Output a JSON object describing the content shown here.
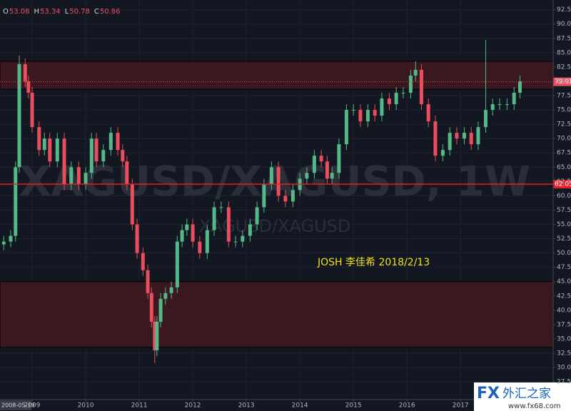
{
  "chart_data": {
    "type": "candlestick",
    "symbol_watermark": "XAGUSD/XAGUSD, 1W",
    "symbol_watermark_sub": "XAGUSD/XAGUSD",
    "annotation": "JOSH 李佳希 2018/2/13",
    "ohlc_legend": [
      {
        "label": "O",
        "value": 53.08
      },
      {
        "label": "H",
        "value": 53.34
      },
      {
        "label": "L",
        "value": 50.78
      },
      {
        "label": "C",
        "value": 50.86
      }
    ],
    "x_crosshair_label": "2008-05-19",
    "x": [
      2008.47,
      2008.6,
      2008.69,
      2008.76,
      2008.87,
      2008.93,
      2009.0,
      2009.13,
      2009.23,
      2009.33,
      2009.47,
      2009.6,
      2009.73,
      2009.87,
      2010.0,
      2010.11,
      2010.2,
      2010.33,
      2010.47,
      2010.6,
      2010.69,
      2010.77,
      2010.87,
      2010.96,
      2011.07,
      2011.16,
      2011.23,
      2011.29,
      2011.33,
      2011.4,
      2011.49,
      2011.6,
      2011.71,
      2011.8,
      2011.89,
      2012.0,
      2012.13,
      2012.27,
      2012.4,
      2012.53,
      2012.67,
      2012.8,
      2012.93,
      2013.07,
      2013.2,
      2013.33,
      2013.47,
      2013.6,
      2013.73,
      2013.87,
      2014.0,
      2014.13,
      2014.27,
      2014.4,
      2014.51,
      2014.6,
      2014.73,
      2014.87,
      2015.0,
      2015.13,
      2015.27,
      2015.4,
      2015.53,
      2015.67,
      2015.8,
      2015.93,
      2016.07,
      2016.16,
      2016.27,
      2016.4,
      2016.53,
      2016.67,
      2016.8,
      2016.93,
      2017.07,
      2017.2,
      2017.33,
      2017.47,
      2017.6,
      2017.73,
      2017.87,
      2018.0,
      2018.11
    ],
    "open": [
      51.5,
      52,
      53,
      65,
      83,
      80,
      78,
      72,
      68,
      70,
      66,
      70,
      62,
      65,
      62,
      64,
      70,
      66,
      68,
      71,
      68,
      66,
      62,
      55,
      50,
      47,
      43,
      38,
      33,
      38,
      42,
      43,
      44,
      52,
      54,
      55,
      52,
      50,
      54,
      58,
      58,
      52,
      52,
      53,
      55,
      58,
      62,
      65,
      60,
      59,
      61,
      63,
      64,
      67,
      66,
      63,
      64,
      69,
      75,
      75,
      73,
      75,
      74,
      77,
      76,
      78,
      78,
      81,
      82,
      76,
      73,
      67,
      68,
      71,
      70,
      71,
      69,
      72,
      75,
      76,
      76,
      76,
      78
    ],
    "high": [
      53,
      54,
      66,
      84.5,
      84,
      81,
      79,
      73,
      71,
      71,
      71,
      71,
      66,
      66,
      65,
      71,
      71,
      69,
      72,
      72,
      69,
      67,
      63,
      56,
      51,
      48,
      44,
      39,
      39,
      43,
      44,
      45,
      53,
      55,
      56,
      56,
      53,
      55,
      59,
      59,
      59,
      53,
      54,
      56,
      59,
      63,
      66,
      66,
      61,
      62,
      64,
      65,
      68,
      68,
      67,
      65,
      70,
      76,
      76,
      76,
      76,
      76,
      78,
      78,
      79,
      79,
      82,
      83.5,
      83,
      77,
      74,
      69,
      72,
      72,
      72,
      72,
      73,
      87.2,
      77,
      77,
      77,
      79,
      81
    ],
    "low": [
      50.5,
      51,
      52,
      64,
      79,
      77,
      71,
      67,
      67,
      65,
      65,
      61,
      61,
      61,
      61,
      63,
      65,
      65,
      67,
      67,
      65,
      61,
      54,
      49,
      46,
      42,
      37,
      30.8,
      32,
      37,
      41,
      42,
      43,
      51,
      53,
      51,
      49,
      49,
      53,
      57,
      51,
      51,
      51,
      52,
      54,
      57,
      61,
      59,
      58,
      58,
      60,
      62,
      63,
      65,
      62,
      62,
      63,
      68,
      74,
      72,
      72,
      73,
      73,
      75,
      75,
      77,
      77,
      80,
      75,
      72,
      66,
      66,
      67,
      69,
      69,
      68,
      68,
      71,
      74,
      75,
      75,
      75,
      77
    ],
    "close": [
      52,
      53,
      65,
      83,
      80,
      78,
      72,
      68,
      70,
      66,
      70,
      62,
      65,
      62,
      64,
      70,
      66,
      68,
      71,
      68,
      66,
      62,
      55,
      50,
      47,
      43,
      38,
      33,
      38,
      42,
      43,
      44,
      52,
      54,
      55,
      52,
      50,
      54,
      58,
      58,
      52,
      52,
      53,
      55,
      58,
      62,
      65,
      60,
      59,
      61,
      63,
      64,
      67,
      66,
      63,
      64,
      69,
      75,
      75,
      73,
      75,
      74,
      77,
      76,
      78,
      78,
      81,
      82,
      76,
      73,
      67,
      68,
      71,
      70,
      71,
      69,
      72,
      75,
      76,
      76,
      76,
      78,
      80
    ],
    "up_color": "#53b987",
    "down_color": "#eb4d5c",
    "xlim": [
      2008.4,
      2018.73
    ],
    "xticks": [
      2009,
      2010,
      2011,
      2012,
      2013,
      2014,
      2015,
      2016,
      2017
    ],
    "ylim": [
      24.4,
      94.2
    ],
    "yticks": [
      {
        "value": 27.5,
        "label": "27.50"
      },
      {
        "value": 30,
        "label": "30.00"
      },
      {
        "value": 32.5,
        "label": "32.50"
      },
      {
        "value": 35,
        "label": "35.00"
      },
      {
        "value": 37.5,
        "label": "37.50"
      },
      {
        "value": 40,
        "label": "40.00"
      },
      {
        "value": 42.5,
        "label": "42.50"
      },
      {
        "value": 45,
        "label": "45.00"
      },
      {
        "value": 47.5,
        "label": "47.50"
      },
      {
        "value": 50,
        "label": "50.00"
      },
      {
        "value": 52.5,
        "label": "52.50"
      },
      {
        "value": 55,
        "label": "55.00"
      },
      {
        "value": 57.5,
        "label": "57.50"
      },
      {
        "value": 60,
        "label": "60.00"
      },
      {
        "value": 62.5,
        "label": "62.50"
      },
      {
        "value": 65,
        "label": "65.00"
      },
      {
        "value": 67.5,
        "label": "67.50"
      },
      {
        "value": 70,
        "label": "70.00"
      },
      {
        "value": 72.5,
        "label": "72.50"
      },
      {
        "value": 75,
        "label": "75.00"
      },
      {
        "value": 77.5,
        "label": "77.50"
      },
      {
        "value": 80,
        "label": "80.00"
      },
      {
        "value": 82.5,
        "label": "82.50"
      },
      {
        "value": 85,
        "label": "85.00"
      },
      {
        "value": 87.5,
        "label": "87.50"
      },
      {
        "value": 90,
        "label": "90.00"
      },
      {
        "value": 92.5,
        "label": "92.50"
      }
    ],
    "grid": true,
    "zones": [
      [
        78.6,
        83.5
      ],
      [
        33.5,
        45
      ]
    ],
    "zone_color": "#3a1820",
    "horizontal_line": 62.03,
    "horizontal_line_color": "#e0202a",
    "last_price": 79.91,
    "logo": {
      "brand": "FX",
      "name": "外汇之家",
      "url": "www.fx68.com"
    }
  }
}
